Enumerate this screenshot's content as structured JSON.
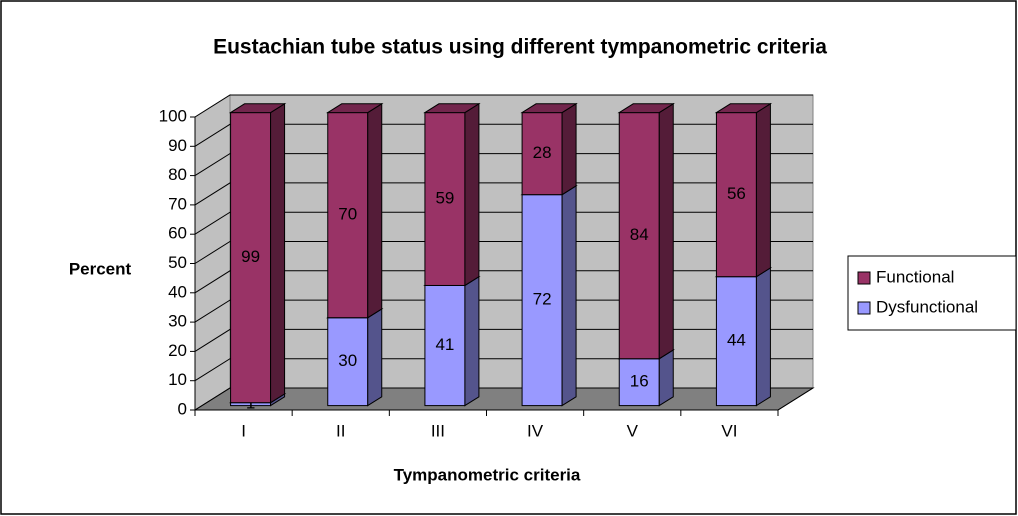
{
  "chart_data": {
    "type": "stacked-bar-3d",
    "title": "Eustachian tube status using different tympanometric criteria",
    "x_label": "Tympanometric criteria",
    "y_label": "Percent",
    "categories": [
      "I",
      "II",
      "III",
      "IV",
      "V",
      "VI"
    ],
    "series": [
      {
        "name": "Dysfunctional",
        "color": "#9999ff",
        "values": [
          1,
          30,
          41,
          72,
          16,
          44
        ]
      },
      {
        "name": "Functional",
        "color": "#993366",
        "values": [
          99,
          70,
          59,
          28,
          84,
          56
        ]
      }
    ],
    "ylim": [
      0,
      100
    ],
    "yticks": [
      0,
      10,
      20,
      30,
      40,
      50,
      60,
      70,
      80,
      90,
      100
    ],
    "grid": true,
    "legend": "right"
  }
}
